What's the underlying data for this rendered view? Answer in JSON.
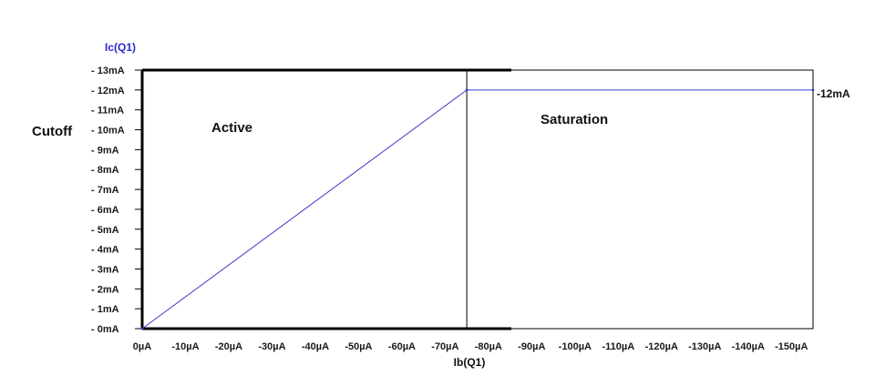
{
  "chart_data": {
    "type": "line",
    "xlabel": "Ib(Q1)",
    "ylabel": "Ic(Q1)",
    "x_ticks": [
      "0µA",
      "-10µA",
      "-20µA",
      "-30µA",
      "-40µA",
      "-50µA",
      "-60µA",
      "-70µA",
      "-80µA",
      "-90µA",
      "-100µA",
      "-110µA",
      "-120µA",
      "-130µA",
      "-140µA",
      "-150µA"
    ],
    "y_ticks": [
      "0mA",
      "1mA",
      "2mA",
      "3mA",
      "4mA",
      "5mA",
      "6mA",
      "7mA",
      "8mA",
      "9mA",
      "10mA",
      "11mA",
      "12mA",
      "13mA"
    ],
    "xlim": [
      0,
      155
    ],
    "ylim": [
      0,
      13
    ],
    "series": [
      {
        "x": [
          0,
          75,
          155
        ],
        "y": [
          0,
          12,
          12
        ]
      }
    ],
    "vertical_marker_x": 75,
    "regions": {
      "cutoff": "Cutoff",
      "active": "Active",
      "saturation": "Saturation"
    },
    "end_annotation": "-12mA",
    "grid": false,
    "colors": {
      "series": "#3a3ac8",
      "ylabel": "#2a2ad0",
      "axes": "#000000"
    }
  }
}
